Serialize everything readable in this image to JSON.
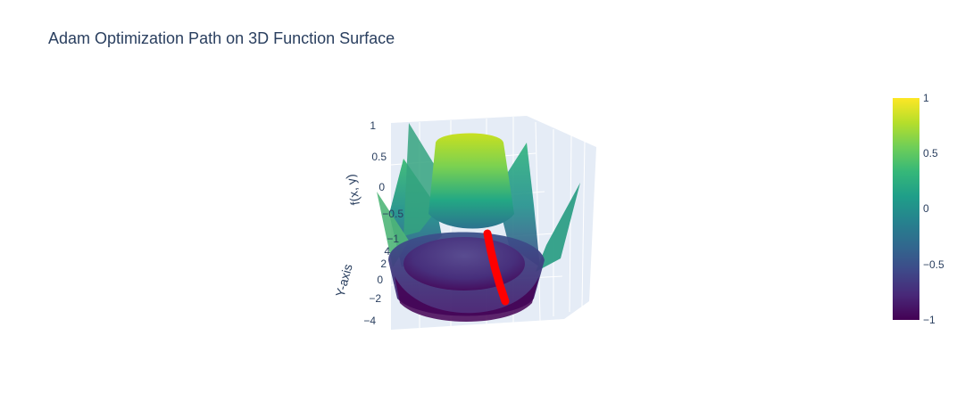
{
  "chart_data": {
    "type": "surface",
    "title": "Adam Optimization Path on 3D Function Surface",
    "axes": {
      "z": {
        "title": "f(x, y)",
        "ticks": [
          "1",
          "0.5",
          "0",
          "−0.5",
          "−1"
        ]
      },
      "y": {
        "title": "Y-axis",
        "ticks": [
          "4",
          "2",
          "0",
          "−2",
          "−4"
        ]
      }
    },
    "colorbar": {
      "colorscale": "Viridis",
      "range": [
        -1,
        1
      ],
      "ticks": [
        "1",
        "0.5",
        "0",
        "−0.5",
        "−1"
      ]
    },
    "series": [
      {
        "kind": "surface",
        "colorscale": "Viridis"
      },
      {
        "kind": "optimization-path",
        "color": "#ff0000"
      }
    ]
  }
}
